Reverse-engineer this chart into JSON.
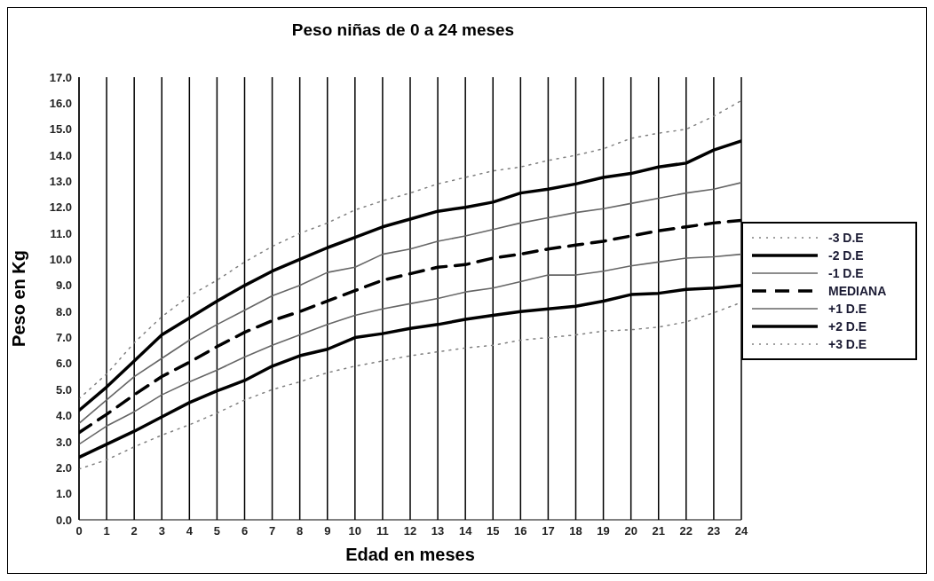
{
  "chart_data": {
    "type": "line",
    "title": "Peso niñas de 0 a 24 meses",
    "xlabel": "Edad en meses",
    "ylabel": "Peso en Kg",
    "x": [
      0,
      1,
      2,
      3,
      4,
      5,
      6,
      7,
      8,
      9,
      10,
      11,
      12,
      13,
      14,
      15,
      16,
      17,
      18,
      19,
      20,
      21,
      22,
      23,
      24
    ],
    "xlim": [
      0,
      24
    ],
    "xticks": [
      0,
      1,
      2,
      3,
      4,
      5,
      6,
      7,
      8,
      9,
      10,
      11,
      12,
      13,
      14,
      15,
      16,
      17,
      18,
      19,
      20,
      21,
      22,
      23,
      24
    ],
    "ylim": [
      0,
      17
    ],
    "yticks": [
      {
        "value": 0,
        "label": "0.0"
      },
      {
        "value": 1,
        "label": "1.0"
      },
      {
        "value": 2,
        "label": "2.0"
      },
      {
        "value": 3,
        "label": "3.0"
      },
      {
        "value": 4,
        "label": "4.0"
      },
      {
        "value": 5,
        "label": "5.0"
      },
      {
        "value": 6,
        "label": "6.0"
      },
      {
        "value": 7,
        "label": "7.0"
      },
      {
        "value": 8,
        "label": "8.0"
      },
      {
        "value": 9,
        "label": "9.0"
      },
      {
        "value": 10,
        "label": "10.0"
      },
      {
        "value": 11,
        "label": "11.0"
      },
      {
        "value": 12,
        "label": "12.0"
      },
      {
        "value": 13,
        "label": "13.0"
      },
      {
        "value": 14,
        "label": "14.0"
      },
      {
        "value": 15,
        "label": "15.0"
      },
      {
        "value": 16,
        "label": "16.0"
      },
      {
        "value": 17,
        "label": "17.0"
      }
    ],
    "grid": "x",
    "legend": "right",
    "marker": "none",
    "series": [
      {
        "name": "-3  D.E",
        "color": "#808080",
        "line_style": "dotted",
        "values": [
          4.65,
          5.6,
          6.8,
          7.8,
          8.6,
          9.2,
          9.9,
          10.5,
          11.0,
          11.4,
          11.9,
          12.25,
          12.55,
          12.9,
          13.15,
          13.4,
          13.55,
          13.8,
          14.0,
          14.25,
          14.65,
          14.85,
          15.0,
          15.5,
          16.1
        ]
      },
      {
        "name": "-2  D.E",
        "color": "#000000",
        "line_style": "solid",
        "values": [
          4.2,
          5.1,
          6.1,
          7.1,
          7.75,
          8.4,
          9.0,
          9.55,
          10.0,
          10.45,
          10.85,
          11.25,
          11.55,
          11.85,
          12.0,
          12.2,
          12.55,
          12.7,
          12.9,
          13.15,
          13.3,
          13.55,
          13.7,
          14.2,
          14.55
        ]
      },
      {
        "name": "-1  D.E",
        "color": "#666666",
        "line_style": "solid",
        "values": [
          3.7,
          4.6,
          5.5,
          6.2,
          6.9,
          7.5,
          8.05,
          8.6,
          9.0,
          9.5,
          9.7,
          10.2,
          10.4,
          10.7,
          10.9,
          11.15,
          11.4,
          11.6,
          11.8,
          11.95,
          12.15,
          12.35,
          12.55,
          12.7,
          12.95
        ]
      },
      {
        "name": "MEDIANA",
        "color": "#000000",
        "line_style": "dashed",
        "values": [
          3.35,
          4.05,
          4.8,
          5.5,
          6.05,
          6.65,
          7.2,
          7.65,
          8.0,
          8.4,
          8.8,
          9.2,
          9.45,
          9.7,
          9.8,
          10.05,
          10.2,
          10.4,
          10.55,
          10.7,
          10.9,
          11.1,
          11.25,
          11.4,
          11.5
        ]
      },
      {
        "name": "+1 D.E",
        "color": "#666666",
        "line_style": "solid",
        "values": [
          2.9,
          3.6,
          4.15,
          4.8,
          5.3,
          5.75,
          6.25,
          6.7,
          7.1,
          7.5,
          7.85,
          8.1,
          8.3,
          8.5,
          8.75,
          8.9,
          9.15,
          9.4,
          9.4,
          9.55,
          9.75,
          9.9,
          10.05,
          10.1,
          10.2
        ]
      },
      {
        "name": "+2 D.E",
        "color": "#000000",
        "line_style": "solid",
        "values": [
          2.4,
          2.9,
          3.4,
          3.95,
          4.5,
          4.95,
          5.35,
          5.9,
          6.3,
          6.55,
          7.0,
          7.15,
          7.35,
          7.5,
          7.7,
          7.85,
          8.0,
          8.1,
          8.2,
          8.4,
          8.65,
          8.7,
          8.85,
          8.9,
          9.0
        ]
      },
      {
        "name": "+3 D.E",
        "color": "#808080",
        "line_style": "dotted",
        "values": [
          1.95,
          2.3,
          2.8,
          3.25,
          3.65,
          4.1,
          4.6,
          5.0,
          5.3,
          5.65,
          5.9,
          6.1,
          6.3,
          6.45,
          6.6,
          6.7,
          6.9,
          7.0,
          7.1,
          7.25,
          7.3,
          7.4,
          7.6,
          7.95,
          8.35
        ]
      }
    ]
  }
}
